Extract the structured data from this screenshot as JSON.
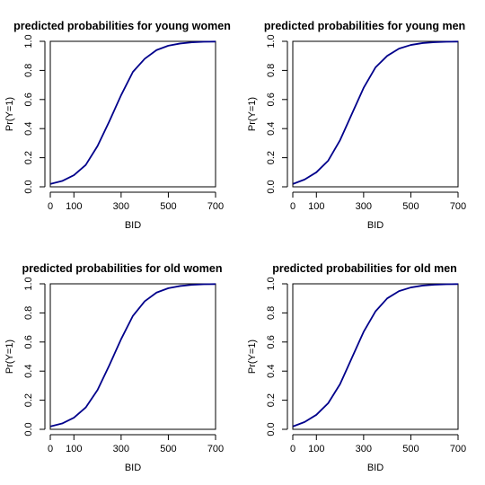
{
  "chart_data": [
    {
      "type": "line",
      "title": "predicted probabilities for young women",
      "xlabel": "BID",
      "ylabel": "Pr(Y=1)",
      "xlim": [
        0,
        700
      ],
      "ylim": [
        0,
        1
      ],
      "xticks": [
        0,
        100,
        300,
        500,
        700
      ],
      "yticks": [
        0.0,
        0.2,
        0.4,
        0.6,
        0.8,
        1.0
      ],
      "grid": false,
      "series_color": "#00008B",
      "x": [
        1,
        50,
        100,
        150,
        200,
        250,
        300,
        350,
        400,
        450,
        500,
        550,
        600,
        650,
        700
      ],
      "y": [
        0.02,
        0.04,
        0.08,
        0.15,
        0.28,
        0.45,
        0.63,
        0.79,
        0.88,
        0.94,
        0.97,
        0.985,
        0.993,
        0.997,
        0.998
      ]
    },
    {
      "type": "line",
      "title": "predicted probabilities for young men",
      "xlabel": "BID",
      "ylabel": "Pr(Y=1)",
      "xlim": [
        0,
        700
      ],
      "ylim": [
        0,
        1
      ],
      "xticks": [
        0,
        100,
        300,
        500,
        700
      ],
      "yticks": [
        0.0,
        0.2,
        0.4,
        0.6,
        0.8,
        1.0
      ],
      "grid": false,
      "series_color": "#00008B",
      "x": [
        1,
        50,
        100,
        150,
        200,
        250,
        300,
        350,
        400,
        450,
        500,
        550,
        600,
        650,
        700
      ],
      "y": [
        0.02,
        0.05,
        0.1,
        0.18,
        0.32,
        0.5,
        0.68,
        0.82,
        0.9,
        0.95,
        0.975,
        0.988,
        0.994,
        0.997,
        0.998
      ]
    },
    {
      "type": "line",
      "title": "predicted probabilities for old women",
      "xlabel": "BID",
      "ylabel": "Pr(Y=1)",
      "xlim": [
        0,
        700
      ],
      "ylim": [
        0,
        1
      ],
      "xticks": [
        0,
        100,
        300,
        500,
        700
      ],
      "yticks": [
        0.0,
        0.2,
        0.4,
        0.6,
        0.8,
        1.0
      ],
      "grid": false,
      "series_color": "#00008B",
      "x": [
        1,
        50,
        100,
        150,
        200,
        250,
        300,
        350,
        400,
        450,
        500,
        550,
        600,
        650,
        700
      ],
      "y": [
        0.02,
        0.04,
        0.08,
        0.15,
        0.27,
        0.44,
        0.62,
        0.78,
        0.88,
        0.94,
        0.97,
        0.985,
        0.993,
        0.997,
        0.998
      ]
    },
    {
      "type": "line",
      "title": "predicted probabilities for old men",
      "xlabel": "BID",
      "ylabel": "Pr(Y=1)",
      "xlim": [
        0,
        700
      ],
      "ylim": [
        0,
        1
      ],
      "xticks": [
        0,
        100,
        300,
        500,
        700
      ],
      "yticks": [
        0.0,
        0.2,
        0.4,
        0.6,
        0.8,
        1.0
      ],
      "grid": false,
      "series_color": "#00008B",
      "x": [
        1,
        50,
        100,
        150,
        200,
        250,
        300,
        350,
        400,
        450,
        500,
        550,
        600,
        650,
        700
      ],
      "y": [
        0.02,
        0.05,
        0.1,
        0.18,
        0.31,
        0.49,
        0.67,
        0.81,
        0.9,
        0.95,
        0.975,
        0.988,
        0.994,
        0.997,
        0.998
      ]
    }
  ]
}
